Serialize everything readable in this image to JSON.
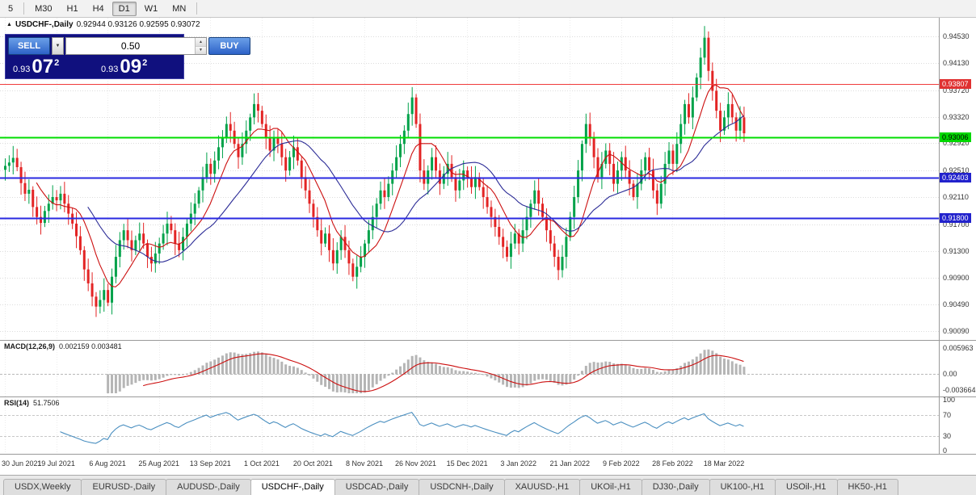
{
  "colors": {
    "up": "#00a24a",
    "down": "#e32424",
    "ma_fast": "#cc0f0f",
    "ma_slow": "#2b2b96",
    "macd_hist": "#b5b5b5",
    "macd_signal": "#cc0f0f",
    "rsi_line": "#4a8fc0",
    "grid": "#dcdcdc",
    "vgrid": "#ececec",
    "panel_bg": "#10107e"
  },
  "icons": {
    "symbol_marker": "▲",
    "dropdown_arrow": "▼",
    "spinner_up": "▲",
    "spinner_down": "▼"
  },
  "toolbar": {
    "buttons": [
      {
        "label": "5",
        "active": false,
        "sep_after": true
      },
      {
        "label": "M30",
        "active": false
      },
      {
        "label": "H1",
        "active": false
      },
      {
        "label": "H4",
        "active": false
      },
      {
        "label": "D1",
        "active": true
      },
      {
        "label": "W1",
        "active": false
      },
      {
        "label": "MN",
        "active": false,
        "sep_after": true
      }
    ]
  },
  "chart_header": {
    "title": "USDCHF-,Daily",
    "ohlc_text": "0.92944 0.93126 0.92595 0.93072"
  },
  "trade_panel": {
    "sell_label": "SELL",
    "buy_label": "BUY",
    "lot": "0.50",
    "bid": {
      "base": "0.93",
      "big": "07",
      "sup": "2"
    },
    "ask": {
      "base": "0.93",
      "big": "09",
      "sup": "2"
    }
  },
  "chart_data": {
    "type": "candlestick",
    "symbol": "USDCHF",
    "timeframe": "Daily",
    "ohlc_display": {
      "open": "0.92944",
      "high": "0.93126",
      "low": "0.92595",
      "close": "0.93072"
    },
    "price_axis": {
      "min": 0.8997,
      "max": 0.9481,
      "grid_labels": [
        "0.94530",
        "0.94130",
        "0.93720",
        "0.93320",
        "0.92920",
        "0.92510",
        "0.92110",
        "0.91700",
        "0.91300",
        "0.90900",
        "0.90490",
        "0.90090"
      ]
    },
    "hlines": [
      {
        "value": 0.93807,
        "label": "0.93807",
        "color": "#f03b3b",
        "badge_bg": "#e03131",
        "badge_fg": "#ffffff",
        "width": 1
      },
      {
        "value": 0.93006,
        "label": "0.93006",
        "color": "#00dd00",
        "badge_bg": "#00d800",
        "badge_fg": "#000000",
        "width": 2
      },
      {
        "value": 0.92403,
        "label": "0.92403",
        "color": "#2929e0",
        "badge_bg": "#2222cc",
        "badge_fg": "#ffffff",
        "width": 2
      },
      {
        "value": 0.918,
        "label": "0.91800",
        "color": "#2929e0",
        "badge_bg": "#2222cc",
        "badge_fg": "#ffffff",
        "width": 2
      }
    ],
    "first_open": 0.9252,
    "closes": [
      0.9258,
      0.9263,
      0.927,
      0.9256,
      0.9232,
      0.9216,
      0.9222,
      0.9196,
      0.9181,
      0.9172,
      0.919,
      0.9201,
      0.9211,
      0.9206,
      0.9216,
      0.9201,
      0.9186,
      0.9171,
      0.9152,
      0.9131,
      0.9102,
      0.9081,
      0.9061,
      0.9046,
      0.9056,
      0.9071,
      0.9052,
      0.9091,
      0.9121,
      0.9146,
      0.9161,
      0.9146,
      0.9131,
      0.9146,
      0.9156,
      0.9141,
      0.9121,
      0.9111,
      0.9126,
      0.9141,
      0.9156,
      0.9171,
      0.9161,
      0.9141,
      0.9131,
      0.9151,
      0.9171,
      0.9186,
      0.9201,
      0.9221,
      0.9241,
      0.9261,
      0.9246,
      0.9266,
      0.9286,
      0.9301,
      0.9321,
      0.9311,
      0.9291,
      0.9271,
      0.9291,
      0.9311,
      0.9331,
      0.9351,
      0.9341,
      0.9321,
      0.9301,
      0.9281,
      0.9301,
      0.9291,
      0.9271,
      0.9251,
      0.9271,
      0.9286,
      0.9266,
      0.9241,
      0.9221,
      0.9201,
      0.9181,
      0.9161,
      0.9141,
      0.9156,
      0.9131,
      0.9111,
      0.9131,
      0.9151,
      0.9131,
      0.9111,
      0.9091,
      0.9106,
      0.9121,
      0.9141,
      0.9161,
      0.9181,
      0.9201,
      0.9221,
      0.9211,
      0.9231,
      0.9251,
      0.9271,
      0.9291,
      0.9311,
      0.9336,
      0.9361,
      0.9321,
      0.9251,
      0.9231,
      0.9251,
      0.9271,
      0.9251,
      0.9231,
      0.9246,
      0.9261,
      0.9241,
      0.9221,
      0.9236,
      0.9251,
      0.9241,
      0.9226,
      0.9241,
      0.9226,
      0.9211,
      0.9196,
      0.9181,
      0.9166,
      0.9151,
      0.9136,
      0.9121,
      0.9141,
      0.9156,
      0.9141,
      0.9161,
      0.9181,
      0.9201,
      0.9221,
      0.9201,
      0.9181,
      0.9161,
      0.9141,
      0.9121,
      0.9101,
      0.9121,
      0.9151,
      0.9181,
      0.9211,
      0.9251,
      0.9291,
      0.9321,
      0.9301,
      0.9271,
      0.9241,
      0.9261,
      0.9281,
      0.9261,
      0.9231,
      0.9251,
      0.9271,
      0.9251,
      0.9231,
      0.9211,
      0.9231,
      0.9251,
      0.9271,
      0.9251,
      0.9221,
      0.9201,
      0.9231,
      0.9261,
      0.9281,
      0.9261,
      0.9291,
      0.9321,
      0.9351,
      0.9331,
      0.9361,
      0.9391,
      0.9421,
      0.9451,
      0.9401,
      0.9371,
      0.9341,
      0.9311,
      0.9331,
      0.9351,
      0.9331,
      0.9311,
      0.9331,
      0.9307
    ],
    "x_ticks": {
      "every": 13,
      "labels": [
        "30 Jun 2021",
        "19 Jul 2021",
        "6 Aug 2021",
        "25 Aug 2021",
        "13 Sep 2021",
        "1 Oct 2021",
        "20 Oct 2021",
        "8 Nov 2021",
        "26 Nov 2021",
        "15 Dec 2021",
        "3 Jan 2022",
        "21 Jan 2022",
        "9 Feb 2022",
        "28 Feb 2022",
        "18 Mar 2022"
      ]
    },
    "ma": {
      "fast_period": 9,
      "slow_period": 22
    },
    "macd": {
      "label": "MACD(12,26,9)",
      "values_text": "0.002159 0.003481",
      "fast": 12,
      "slow": 26,
      "signal": 9,
      "axis_top": 0.005963,
      "axis_bottom": -0.003664,
      "axis_top_label": "0.005963",
      "axis_zero_label": "0.00",
      "axis_bottom_label": "-0.003664"
    },
    "rsi": {
      "label": "RSI(14)",
      "value_text": "51.7506",
      "period": 14,
      "axis_labels": [
        "100",
        "70",
        "30",
        "0"
      ],
      "levels": [
        70,
        30
      ]
    }
  },
  "tabbar": {
    "tabs": [
      {
        "label": "USDX,Weekly",
        "active": false
      },
      {
        "label": "EURUSD-,Daily",
        "active": false
      },
      {
        "label": "AUDUSD-,Daily",
        "active": false
      },
      {
        "label": "USDCHF-,Daily",
        "active": true
      },
      {
        "label": "USDCAD-,Daily",
        "active": false
      },
      {
        "label": "USDCNH-,Daily",
        "active": false
      },
      {
        "label": "XAUUSD-,H1",
        "active": false
      },
      {
        "label": "UKOil-,H1",
        "active": false
      },
      {
        "label": "DJ30-,Daily",
        "active": false
      },
      {
        "label": "UK100-,H1",
        "active": false
      },
      {
        "label": "USOil-,H1",
        "active": false
      },
      {
        "label": "HK50-,H1",
        "active": false
      }
    ]
  }
}
